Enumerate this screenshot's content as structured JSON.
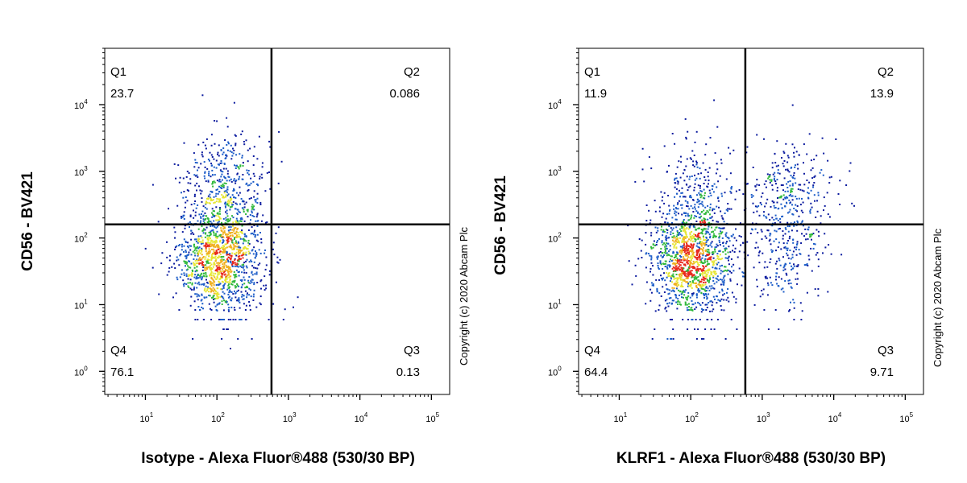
{
  "chart_data": [
    {
      "type": "scatter",
      "subtype": "flow-cytometry-density-dot-plot",
      "xlabel": "Isotype - Alexa Fluor®488 (530/30 BP)",
      "ylabel": "CD56 - BV421",
      "x_scale": "log",
      "y_scale": "log",
      "x_ticks": [
        10,
        100,
        1000,
        10000,
        100000
      ],
      "y_ticks": [
        1,
        10,
        100,
        1000,
        10000
      ],
      "xlim": [
        2.7,
        180000
      ],
      "ylim": [
        0.45,
        70000
      ],
      "gate": {
        "x": 580,
        "y": 160
      },
      "quadrants": [
        {
          "name": "Q1",
          "value": "23.7"
        },
        {
          "name": "Q2",
          "value": "0.086"
        },
        {
          "name": "Q3",
          "value": "0.13"
        },
        {
          "name": "Q4",
          "value": "76.1"
        }
      ],
      "copyright": "Copyright (c) 2020 Abcam Plc",
      "populations": [
        {
          "x": 110,
          "y": 50,
          "count": 1300
        },
        {
          "x": 130,
          "y": 600,
          "count": 420
        }
      ]
    },
    {
      "type": "scatter",
      "subtype": "flow-cytometry-density-dot-plot",
      "xlabel": "KLRF1 - Alexa Fluor®488 (530/30 BP)",
      "ylabel": "CD56 - BV421",
      "x_scale": "log",
      "y_scale": "log",
      "x_ticks": [
        10,
        100,
        1000,
        10000,
        100000
      ],
      "y_ticks": [
        1,
        10,
        100,
        1000,
        10000
      ],
      "xlim": [
        2.7,
        180000
      ],
      "ylim": [
        0.45,
        70000
      ],
      "gate": {
        "x": 580,
        "y": 160
      },
      "quadrants": [
        {
          "name": "Q1",
          "value": "11.9"
        },
        {
          "name": "Q2",
          "value": "13.9"
        },
        {
          "name": "Q3",
          "value": "9.71"
        },
        {
          "name": "Q4",
          "value": "64.4"
        }
      ],
      "copyright": "Copyright (c) 2020 Abcam Plc",
      "populations": [
        {
          "x": 100,
          "y": 45,
          "count": 1300
        },
        {
          "x": 120,
          "y": 500,
          "count": 260
        },
        {
          "x": 2600,
          "y": 450,
          "count": 300
        },
        {
          "x": 2000,
          "y": 50,
          "count": 200
        }
      ]
    }
  ]
}
